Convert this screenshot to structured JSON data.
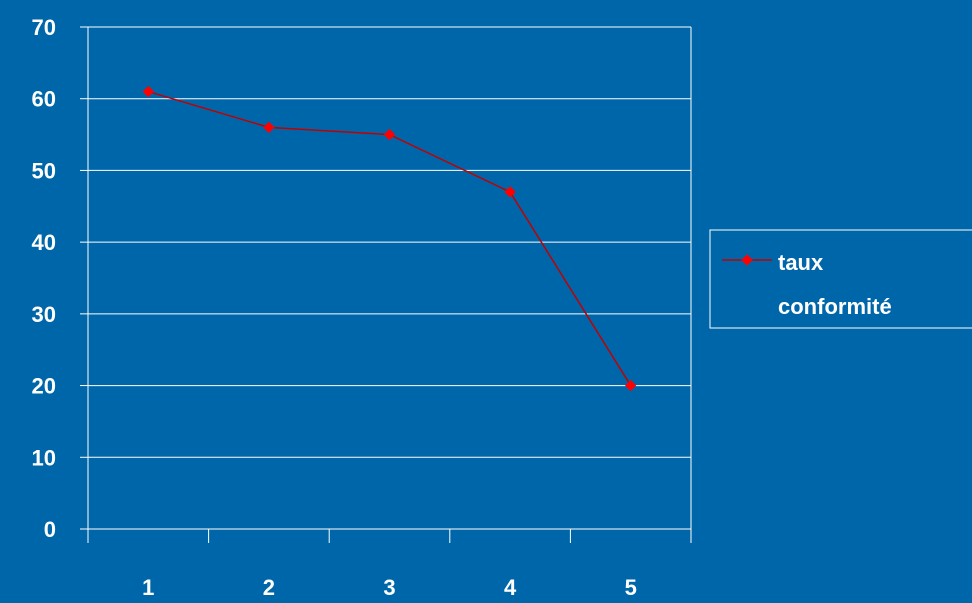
{
  "chart_data": {
    "type": "line",
    "categories": [
      "1",
      "2",
      "3",
      "4",
      "5"
    ],
    "series": [
      {
        "name": "taux conformité",
        "values": [
          61,
          56,
          55,
          47,
          20
        ]
      }
    ],
    "legend_lines": [
      "taux",
      "conformité"
    ],
    "ylim": [
      0,
      70
    ],
    "yticks": [
      "0",
      "10",
      "20",
      "30",
      "40",
      "50",
      "60",
      "70"
    ],
    "grid": true,
    "legend_position": "right",
    "colors": {
      "background": "#0066aa",
      "series": "#c00000",
      "marker": "#ff0000",
      "axis": "#ffffff",
      "text": "#ffffff"
    }
  }
}
